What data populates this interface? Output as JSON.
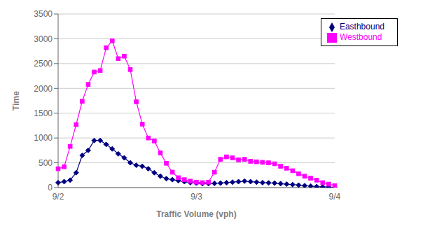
{
  "chart_data": {
    "type": "line",
    "xlabel": "Traffic Volume (vph)",
    "ylabel": "Time",
    "categories": [
      "9/2",
      null,
      null,
      null,
      null,
      null,
      null,
      null,
      null,
      null,
      null,
      null,
      null,
      null,
      null,
      null,
      null,
      null,
      null,
      null,
      null,
      null,
      null,
      "9/3",
      null,
      null,
      null,
      null,
      null,
      null,
      null,
      null,
      null,
      null,
      null,
      null,
      null,
      null,
      null,
      null,
      null,
      null,
      null,
      null,
      null,
      null,
      "9/4"
    ],
    "series": [
      {
        "name": "Easthbound",
        "color": "#000080",
        "marker": "diamond",
        "values": [
          100,
          120,
          150,
          300,
          650,
          750,
          950,
          950,
          870,
          780,
          680,
          600,
          500,
          450,
          430,
          380,
          300,
          230,
          180,
          160,
          140,
          120,
          100,
          90,
          80,
          80,
          85,
          90,
          100,
          110,
          120,
          130,
          120,
          110,
          100,
          95,
          90,
          80,
          70,
          60,
          50,
          40,
          30,
          20,
          15,
          10,
          5
        ]
      },
      {
        "name": "Westbound",
        "color": "#ff00ff",
        "marker": "square",
        "values": [
          380,
          420,
          830,
          1270,
          1740,
          2080,
          2330,
          2360,
          2820,
          2960,
          2600,
          2650,
          2380,
          1730,
          1280,
          1000,
          940,
          700,
          490,
          310,
          200,
          160,
          130,
          110,
          100,
          110,
          310,
          570,
          620,
          600,
          560,
          570,
          530,
          520,
          510,
          500,
          480,
          430,
          390,
          340,
          280,
          230,
          190,
          150,
          100,
          70,
          40
        ]
      }
    ],
    "ylim": [
      0,
      3500
    ],
    "yticks": [
      0,
      500,
      1000,
      1500,
      2000,
      2500,
      3000,
      3500
    ],
    "grid": "y",
    "legend": "upper right"
  }
}
